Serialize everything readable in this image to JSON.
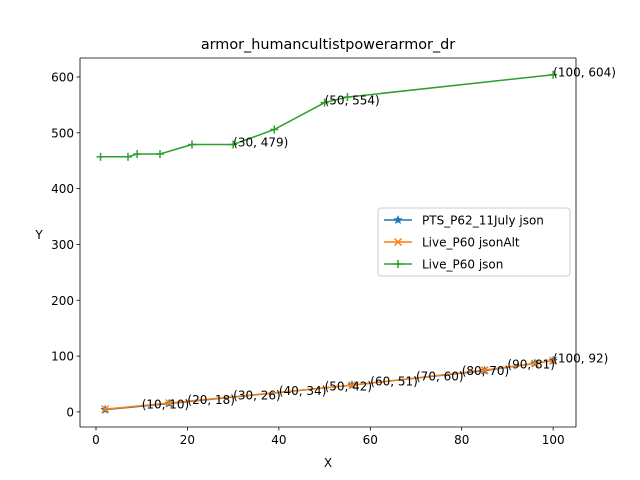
{
  "chart_data": {
    "type": "line",
    "title": "armor_humancultistpowerarmor_dr",
    "xlabel": "X",
    "ylabel": "Y",
    "xlim": [
      -3.5,
      105
    ],
    "ylim": [
      -27,
      634
    ],
    "xticks": [
      0,
      20,
      40,
      60,
      80,
      100
    ],
    "yticks": [
      0,
      100,
      200,
      300,
      400,
      500,
      600
    ],
    "grid": false,
    "legend_position": "center-right",
    "series": [
      {
        "name": "PTS_P62_11July json",
        "color": "#1f77b4",
        "marker": "star",
        "points": [
          [
            2,
            4
          ],
          [
            16,
            15
          ],
          [
            56,
            48
          ],
          [
            85,
            74
          ],
          [
            96,
            87
          ],
          [
            100,
            92
          ]
        ]
      },
      {
        "name": "Live_P60 jsonAlt",
        "color": "#ff7f0e",
        "marker": "x",
        "points": [
          [
            2,
            5
          ],
          [
            16,
            16
          ],
          [
            56,
            48
          ],
          [
            85,
            75
          ],
          [
            96,
            87
          ],
          [
            100,
            92
          ]
        ]
      },
      {
        "name": "Live_P60 json",
        "color": "#2ca02c",
        "marker": "plus",
        "points": [
          [
            1,
            457
          ],
          [
            7,
            457
          ],
          [
            9,
            462
          ],
          [
            14,
            462
          ],
          [
            21,
            479
          ],
          [
            30,
            479
          ],
          [
            39,
            506
          ],
          [
            50,
            554
          ],
          [
            55,
            564
          ],
          [
            100,
            604
          ]
        ]
      }
    ],
    "annotations": [
      {
        "x": 10,
        "y": 10,
        "text": "(10, 10)"
      },
      {
        "x": 20,
        "y": 18,
        "text": "(20, 18)"
      },
      {
        "x": 30,
        "y": 26,
        "text": "(30, 26)"
      },
      {
        "x": 40,
        "y": 34,
        "text": "(40, 34)"
      },
      {
        "x": 50,
        "y": 42,
        "text": "(50, 42)"
      },
      {
        "x": 60,
        "y": 51,
        "text": "(60, 51)"
      },
      {
        "x": 70,
        "y": 60,
        "text": "(70, 60)"
      },
      {
        "x": 80,
        "y": 70,
        "text": "(80, 70)"
      },
      {
        "x": 90,
        "y": 81,
        "text": "(90, 81)"
      },
      {
        "x": 100,
        "y": 92,
        "text": "(100, 92)"
      },
      {
        "x": 30,
        "y": 479,
        "text": "(30, 479)"
      },
      {
        "x": 50,
        "y": 554,
        "text": "(50, 554)"
      },
      {
        "x": 100,
        "y": 604,
        "text": "(100, 604)"
      }
    ]
  }
}
